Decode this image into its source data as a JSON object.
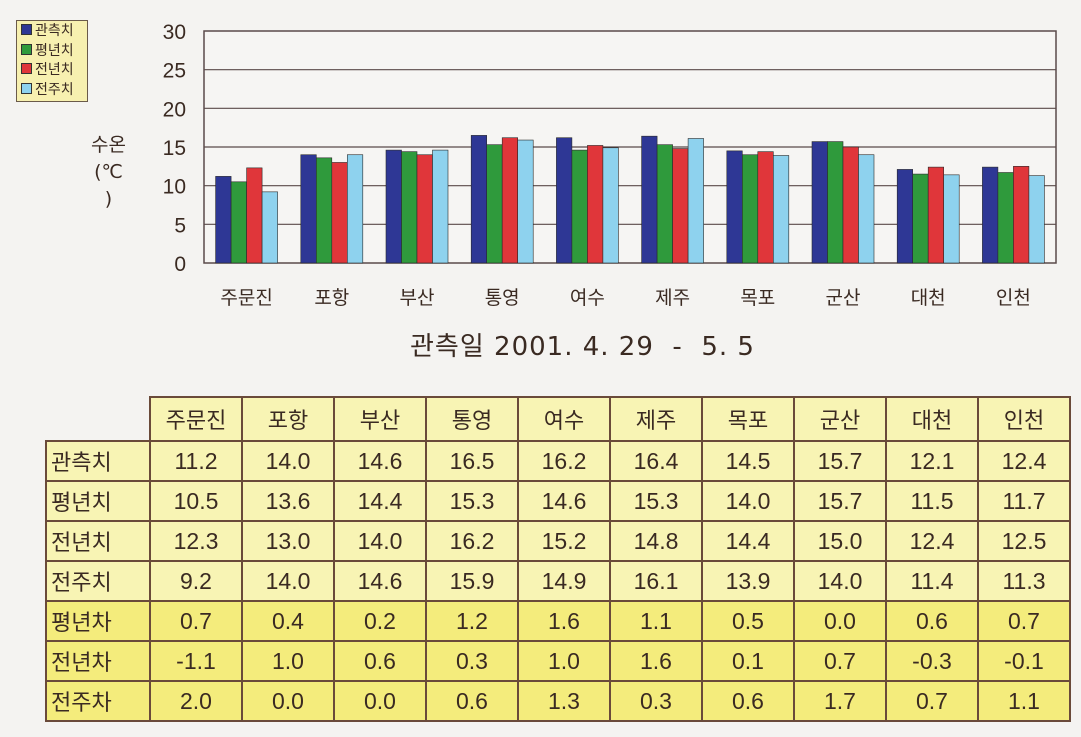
{
  "chart_data": {
    "type": "bar",
    "title": "관측일 2001. 4. 29  -  5. 5",
    "ylabel": "수온 (℃)",
    "ylim": [
      0,
      30
    ],
    "yticks": [
      0,
      5,
      10,
      15,
      20,
      25,
      30
    ],
    "grid": true,
    "legend_placement": "top-left",
    "categories": [
      "주문진",
      "포항",
      "부산",
      "통영",
      "여수",
      "제주",
      "목포",
      "군산",
      "대천",
      "인천"
    ],
    "series": [
      {
        "name": "관측치",
        "color": "#2e3795",
        "values": [
          11.2,
          14.0,
          14.6,
          16.5,
          16.2,
          16.4,
          14.5,
          15.7,
          12.1,
          12.4
        ]
      },
      {
        "name": "평년치",
        "color": "#2f9a3c",
        "values": [
          10.5,
          13.6,
          14.4,
          15.3,
          14.6,
          15.3,
          14.0,
          15.7,
          11.5,
          11.7
        ]
      },
      {
        "name": "전년치",
        "color": "#e0363a",
        "values": [
          12.3,
          13.0,
          14.0,
          16.2,
          15.2,
          14.8,
          14.4,
          15.0,
          12.4,
          12.5
        ]
      },
      {
        "name": "전주치",
        "color": "#8ed2ee",
        "values": [
          9.2,
          14.0,
          14.6,
          15.9,
          14.9,
          16.1,
          13.9,
          14.0,
          11.4,
          11.3
        ]
      }
    ]
  },
  "table": {
    "columns": [
      "주문진",
      "포항",
      "부산",
      "통영",
      "여수",
      "제주",
      "목포",
      "군산",
      "대천",
      "인천"
    ],
    "rows": [
      {
        "label": "관측치",
        "values": [
          "11.2",
          "14.0",
          "14.6",
          "16.5",
          "16.2",
          "16.4",
          "14.5",
          "15.7",
          "12.1",
          "12.4"
        ]
      },
      {
        "label": "평년치",
        "values": [
          "10.5",
          "13.6",
          "14.4",
          "15.3",
          "14.6",
          "15.3",
          "14.0",
          "15.7",
          "11.5",
          "11.7"
        ]
      },
      {
        "label": "전년치",
        "values": [
          "12.3",
          "13.0",
          "14.0",
          "16.2",
          "15.2",
          "14.8",
          "14.4",
          "15.0",
          "12.4",
          "12.5"
        ]
      },
      {
        "label": "전주치",
        "values": [
          "9.2",
          "14.0",
          "14.6",
          "15.9",
          "14.9",
          "16.1",
          "13.9",
          "14.0",
          "11.4",
          "11.3"
        ]
      },
      {
        "label": "평년차",
        "values": [
          "0.7",
          "0.4",
          "0.2",
          "1.2",
          "1.6",
          "1.1",
          "0.5",
          "0.0",
          "0.6",
          "0.7"
        ]
      },
      {
        "label": "전년차",
        "values": [
          "-1.1",
          "1.0",
          "0.6",
          "0.3",
          "1.0",
          "1.6",
          "0.1",
          "0.7",
          "-0.3",
          "-0.1"
        ]
      },
      {
        "label": "전주차",
        "values": [
          "2.0",
          "0.0",
          "0.0",
          "0.6",
          "1.3",
          "0.3",
          "0.6",
          "1.7",
          "0.7",
          "1.1"
        ]
      }
    ]
  },
  "ylabel_lines": [
    "수",
    "온",
    "(℃)"
  ]
}
